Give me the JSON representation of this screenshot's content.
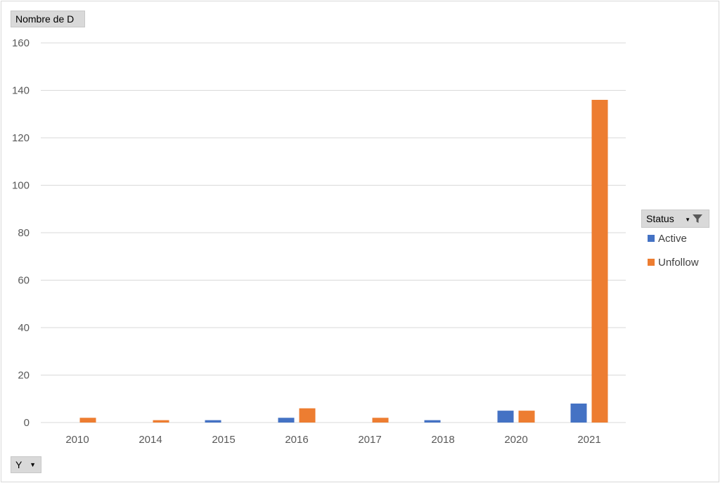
{
  "value_field_label": "Nombre de D",
  "axis_field_label": "Y",
  "legend_field_label": "Status",
  "icons": {
    "filter": "filter-icon",
    "dropdown": "chevron-down-icon"
  },
  "chart_data": {
    "type": "bar",
    "categories": [
      "2010",
      "2014",
      "2015",
      "2016",
      "2017",
      "2018",
      "2020",
      "2021"
    ],
    "series": [
      {
        "name": "Active",
        "color": "#4472c4",
        "values": [
          0,
          0,
          1,
          2,
          0,
          1,
          5,
          8
        ]
      },
      {
        "name": "Unfollow",
        "color": "#ed7d31",
        "values": [
          2,
          1,
          0,
          6,
          2,
          0,
          5,
          136
        ]
      }
    ],
    "ylim": [
      0,
      160
    ],
    "yticks": [
      0,
      20,
      40,
      60,
      80,
      100,
      120,
      140,
      160
    ],
    "grid": true,
    "legend_position": "right",
    "title": "",
    "xlabel": "",
    "ylabel": ""
  }
}
